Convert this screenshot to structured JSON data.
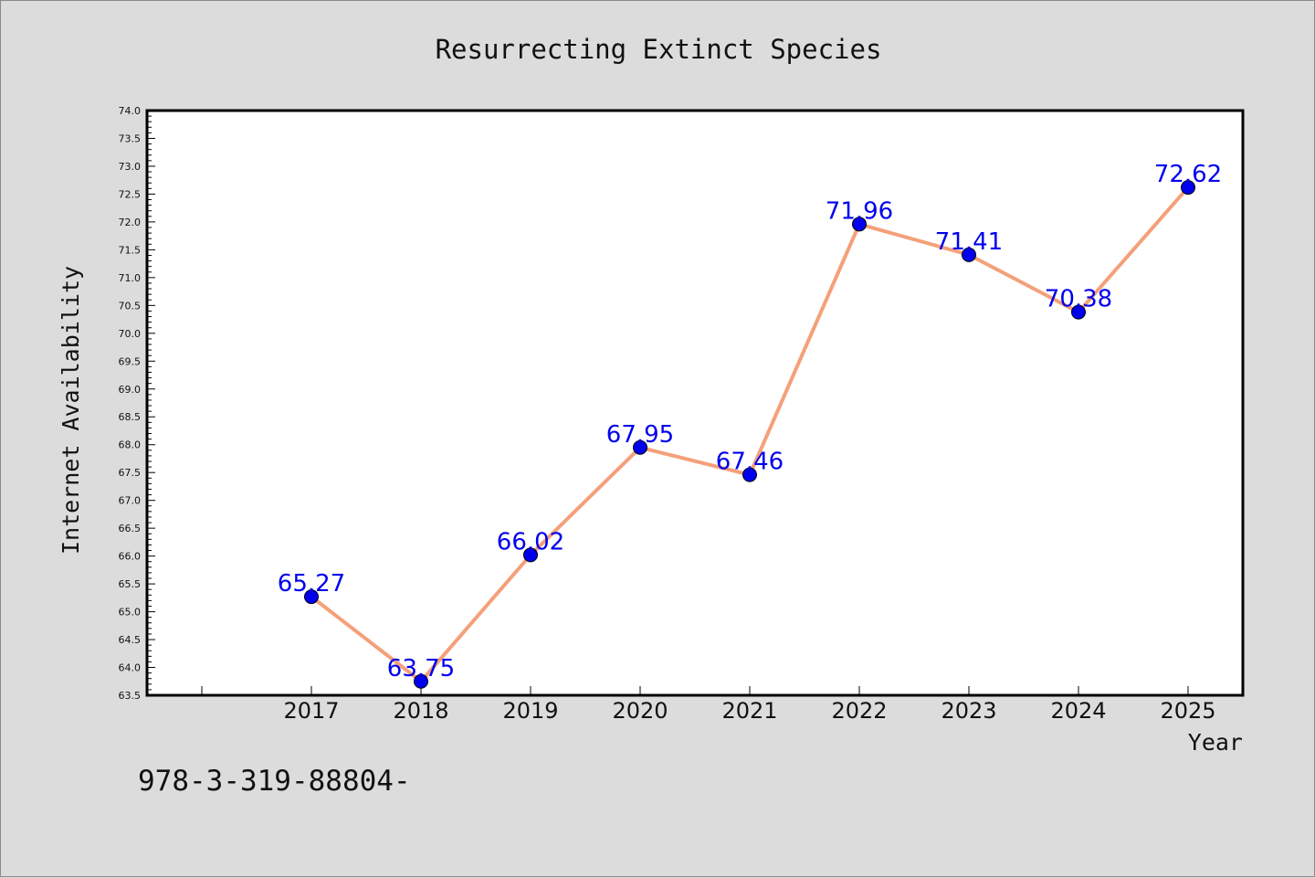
{
  "chart_data": {
    "type": "line",
    "title": "Resurrecting Extinct Species",
    "xlabel": "Year",
    "ylabel": "Internet Availability",
    "x": [
      "2017",
      "2018",
      "2019",
      "2020",
      "2021",
      "2022",
      "2023",
      "2024",
      "2025"
    ],
    "series": [
      {
        "values": [
          65.27,
          63.75,
          66.02,
          67.95,
          67.46,
          71.96,
          71.41,
          70.38,
          72.62
        ],
        "data_labels": [
          "65.27",
          "63.75",
          "66.02",
          "67.95",
          "67.46",
          "71.96",
          "71.41",
          "70.38",
          "72.62"
        ]
      }
    ],
    "ylim": [
      63.5,
      74.0
    ],
    "yticks": [
      "63.5",
      "64.0",
      "64.5",
      "65.0",
      "65.5",
      "66.0",
      "66.5",
      "67.0",
      "67.5",
      "68.0",
      "68.5",
      "69.0",
      "69.5",
      "70.0",
      "70.5",
      "71.0",
      "71.5",
      "72.0",
      "72.5",
      "73.0",
      "73.5",
      "74.0"
    ],
    "grid": false,
    "colors": {
      "line": "#f4a07a",
      "marker": "#0000ee",
      "label": "#0000ee",
      "plot_bg": "#ffffff",
      "page_bg": "#dcdcdc"
    }
  },
  "footer_text": "978-3-319-88804-"
}
